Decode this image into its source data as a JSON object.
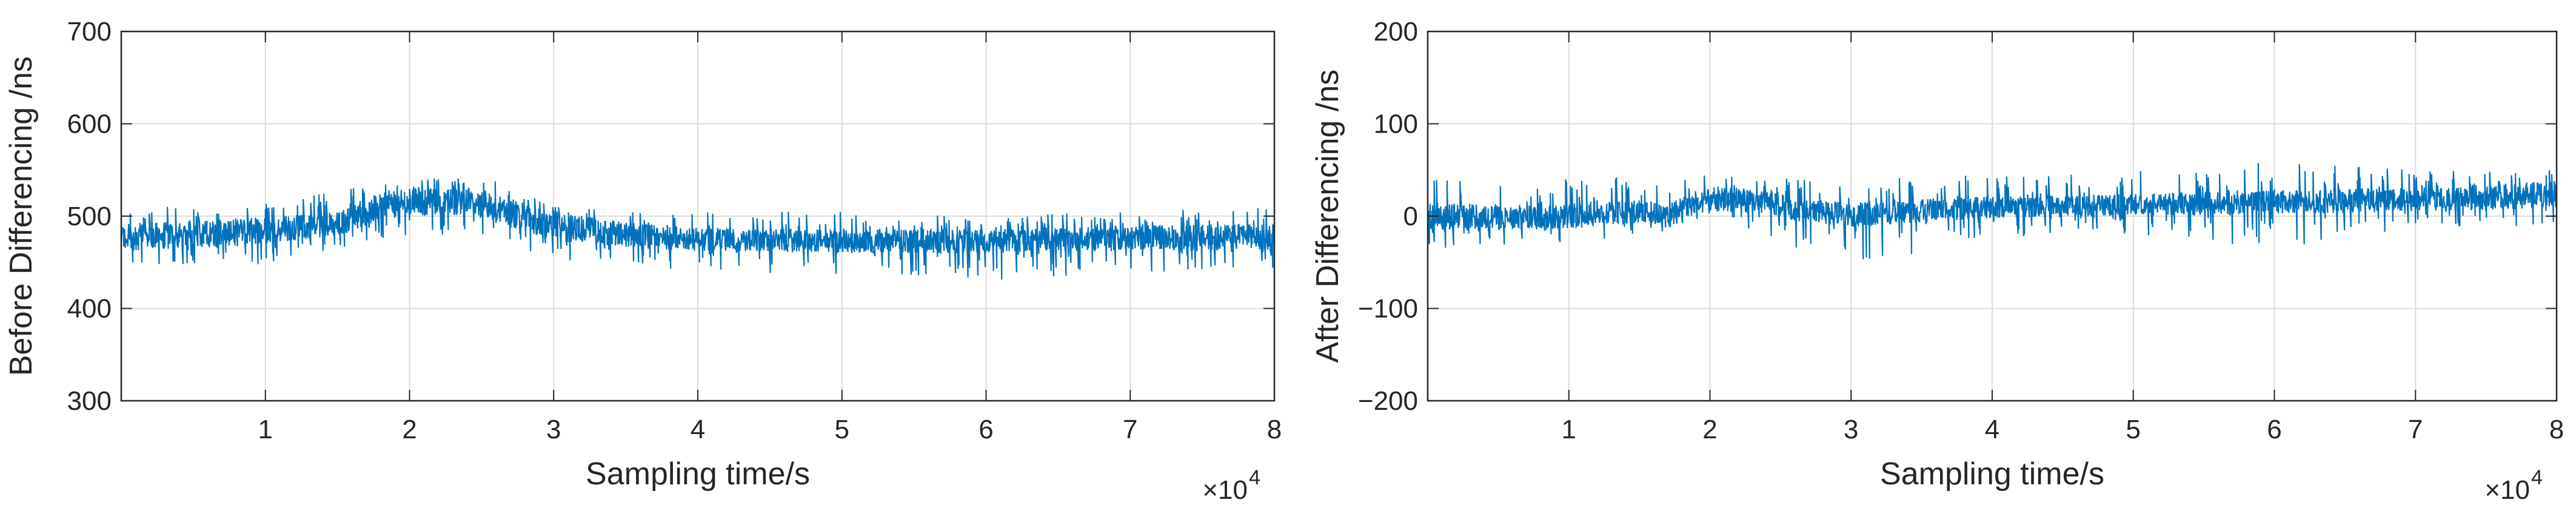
{
  "chart_data": [
    {
      "type": "line",
      "title": "",
      "xlabel": "Sampling time/s",
      "ylabel": "Before Differencing /ns",
      "x_multiplier_label": "×10",
      "x_multiplier_exp": "4",
      "xlim": [
        0,
        8
      ],
      "ylim": [
        300,
        700
      ],
      "xticks": [
        1,
        2,
        3,
        4,
        5,
        6,
        7,
        8
      ],
      "xtick_labels": [
        "1",
        "2",
        "3",
        "4",
        "5",
        "6",
        "7",
        "8"
      ],
      "yticks": [
        300,
        400,
        500,
        600,
        700
      ],
      "ytick_labels": [
        "300",
        "400",
        "500",
        "600",
        "700"
      ],
      "grid": true,
      "series": [
        {
          "color": "#0072BD",
          "band": [
            {
              "x": 0.0,
              "low": 462,
              "high": 492
            },
            {
              "x": 0.5,
              "low": 465,
              "high": 495
            },
            {
              "x": 1.0,
              "low": 470,
              "high": 500
            },
            {
              "x": 1.5,
              "low": 478,
              "high": 505
            },
            {
              "x": 1.8,
              "low": 495,
              "high": 525
            },
            {
              "x": 2.0,
              "low": 500,
              "high": 530
            },
            {
              "x": 2.4,
              "low": 500,
              "high": 530
            },
            {
              "x": 2.7,
              "low": 492,
              "high": 520
            },
            {
              "x": 2.9,
              "low": 478,
              "high": 505
            },
            {
              "x": 3.2,
              "low": 470,
              "high": 500
            },
            {
              "x": 3.6,
              "low": 465,
              "high": 492
            },
            {
              "x": 4.0,
              "low": 462,
              "high": 488
            },
            {
              "x": 5.0,
              "low": 460,
              "high": 485
            },
            {
              "x": 6.0,
              "low": 460,
              "high": 487
            },
            {
              "x": 7.0,
              "low": 463,
              "high": 490
            },
            {
              "x": 8.0,
              "low": 463,
              "high": 492
            }
          ],
          "spike_range": [
            {
              "x": 0.0,
              "min": 445,
              "max": 510
            },
            {
              "x": 1.0,
              "min": 448,
              "max": 515
            },
            {
              "x": 2.0,
              "min": 480,
              "max": 542
            },
            {
              "x": 2.6,
              "min": 480,
              "max": 540
            },
            {
              "x": 3.0,
              "min": 450,
              "max": 510
            },
            {
              "x": 4.0,
              "min": 440,
              "max": 505
            },
            {
              "x": 5.0,
              "min": 435,
              "max": 505
            },
            {
              "x": 6.0,
              "min": 428,
              "max": 500
            },
            {
              "x": 7.0,
              "min": 440,
              "max": 505
            },
            {
              "x": 8.0,
              "min": 440,
              "max": 510
            }
          ]
        }
      ]
    },
    {
      "type": "line",
      "title": "",
      "xlabel": "Sampling time/s",
      "ylabel": "After Differencing /ns",
      "x_multiplier_label": "×10",
      "x_multiplier_exp": "4",
      "xlim": [
        0,
        8
      ],
      "ylim": [
        -200,
        200
      ],
      "xticks": [
        1,
        2,
        3,
        4,
        5,
        6,
        7,
        8
      ],
      "xtick_labels": [
        "1",
        "2",
        "3",
        "4",
        "5",
        "6",
        "7",
        "8"
      ],
      "yticks": [
        -200,
        -100,
        0,
        100,
        200
      ],
      "ytick_labels": [
        "−200",
        "−100",
        "0",
        "100",
        "200"
      ],
      "grid": true,
      "series": [
        {
          "color": "#0072BD",
          "band": [
            {
              "x": 0.0,
              "low": -15,
              "high": 15
            },
            {
              "x": 0.8,
              "low": -15,
              "high": 12
            },
            {
              "x": 1.5,
              "low": -8,
              "high": 18
            },
            {
              "x": 1.7,
              "low": -12,
              "high": 12
            },
            {
              "x": 1.9,
              "low": 2,
              "high": 30
            },
            {
              "x": 2.1,
              "low": 5,
              "high": 32
            },
            {
              "x": 2.4,
              "low": 2,
              "high": 28
            },
            {
              "x": 2.6,
              "low": -5,
              "high": 18
            },
            {
              "x": 3.0,
              "low": -12,
              "high": 15
            },
            {
              "x": 3.4,
              "low": -8,
              "high": 18
            },
            {
              "x": 4.0,
              "low": -2,
              "high": 22
            },
            {
              "x": 5.0,
              "low": 0,
              "high": 25
            },
            {
              "x": 6.0,
              "low": 2,
              "high": 28
            },
            {
              "x": 7.0,
              "low": 5,
              "high": 32
            },
            {
              "x": 8.0,
              "low": 8,
              "high": 38
            }
          ],
          "spike_range": [
            {
              "x": 0.0,
              "min": -35,
              "max": 40
            },
            {
              "x": 1.0,
              "min": -30,
              "max": 42
            },
            {
              "x": 2.0,
              "min": -10,
              "max": 45
            },
            {
              "x": 3.0,
              "min": -55,
              "max": 40
            },
            {
              "x": 4.0,
              "min": -25,
              "max": 45
            },
            {
              "x": 5.0,
              "min": -20,
              "max": 48
            },
            {
              "x": 6.0,
              "min": -38,
              "max": 60
            },
            {
              "x": 7.0,
              "min": -15,
              "max": 50
            },
            {
              "x": 8.0,
              "min": -10,
              "max": 50
            }
          ]
        }
      ]
    }
  ]
}
